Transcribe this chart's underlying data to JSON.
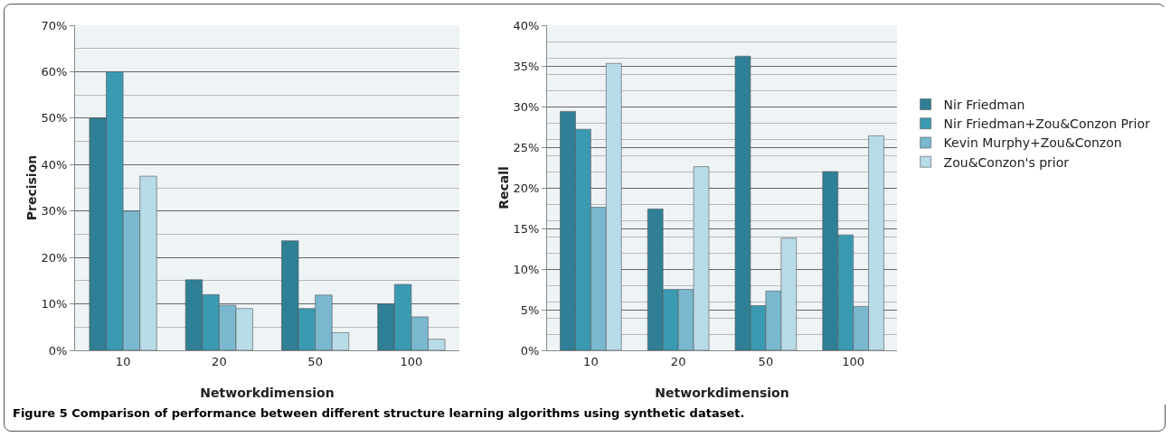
{
  "chart_data": [
    {
      "type": "bar",
      "xlabel": "Networkdimension",
      "ylabel": "Precision",
      "categories": [
        "10",
        "20",
        "50",
        "100"
      ],
      "series": [
        {
          "color": "#2f7f96",
          "values": [
            50,
            15.2,
            23.6,
            10
          ]
        },
        {
          "color": "#3a9ab2",
          "values": [
            60,
            12,
            9,
            14.2
          ]
        },
        {
          "color": "#79b8cf",
          "values": [
            30,
            9.7,
            11.9,
            7.2
          ]
        },
        {
          "color": "#b8dbe8",
          "values": [
            37.5,
            9,
            3.8,
            2.4
          ]
        }
      ],
      "ylim": [
        0,
        70
      ],
      "yticks": [
        {
          "value": 0,
          "label": "0%"
        },
        {
          "value": 10,
          "label": "10%"
        },
        {
          "value": 20,
          "label": "20%"
        },
        {
          "value": 30,
          "label": "30%"
        },
        {
          "value": 40,
          "label": "40%"
        },
        {
          "value": 50,
          "label": "50%"
        },
        {
          "value": 60,
          "label": "60%"
        },
        {
          "value": 70,
          "label": "70%"
        }
      ],
      "grid": "y",
      "legend": false,
      "annotations": [
        "Figure 5 Comparison of performance between different structure learning algorithms using synthetic dataset."
      ]
    },
    {
      "type": "bar",
      "xlabel": "Networkdimension",
      "ylabel": "Recall",
      "categories": [
        "10",
        "20",
        "50",
        "100"
      ],
      "series": [
        {
          "name": "Nir Friedman",
          "color": "#2f7f96",
          "values": [
            29.4,
            17.4,
            36.2,
            22
          ]
        },
        {
          "name": "Nir Friedman+Zou&Conzon Prior",
          "color": "#3a9ab2",
          "values": [
            27.2,
            7.5,
            5.5,
            14.2
          ]
        },
        {
          "name": "Kevin Murphy+Zou&Conzon",
          "color": "#79b8cf",
          "values": [
            17.6,
            7.5,
            7.3,
            5.4
          ]
        },
        {
          "name": "Zou&Conzon's prior",
          "color": "#b8dbe8",
          "values": [
            35.3,
            22.6,
            13.8,
            26.4
          ]
        }
      ],
      "ylim": [
        0,
        40
      ],
      "yticks": [
        {
          "value": 0,
          "label": "0%"
        },
        {
          "value": 5,
          "label": "5%"
        },
        {
          "value": 10,
          "label": "10%"
        },
        {
          "value": 15,
          "label": "15%"
        },
        {
          "value": 20,
          "label": "20%"
        },
        {
          "value": 25,
          "label": "25%"
        },
        {
          "value": 30,
          "label": "30%"
        },
        {
          "value": 35,
          "label": "35%"
        },
        {
          "value": 40,
          "label": "40%"
        }
      ],
      "grid": "y",
      "legend": "right"
    }
  ]
}
